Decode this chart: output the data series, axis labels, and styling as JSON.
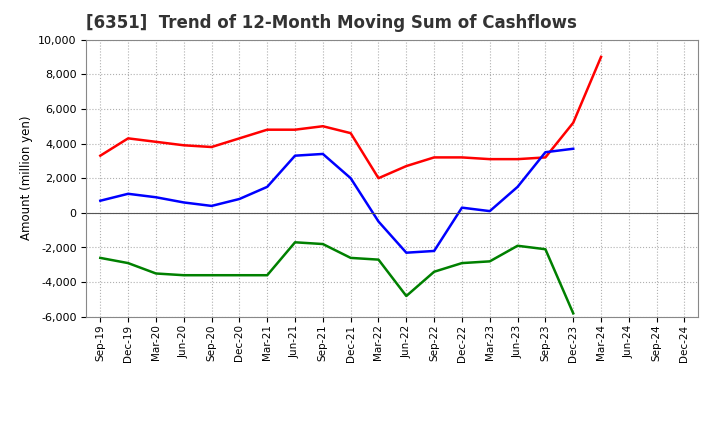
{
  "title": "[6351]  Trend of 12-Month Moving Sum of Cashflows",
  "ylabel": "Amount (million yen)",
  "x_labels": [
    "Sep-19",
    "Dec-19",
    "Mar-20",
    "Jun-20",
    "Sep-20",
    "Dec-20",
    "Mar-21",
    "Jun-21",
    "Sep-21",
    "Dec-21",
    "Mar-22",
    "Jun-22",
    "Sep-22",
    "Dec-22",
    "Mar-23",
    "Jun-23",
    "Sep-23",
    "Dec-23",
    "Mar-24",
    "Jun-24",
    "Sep-24",
    "Dec-24"
  ],
  "operating": [
    3300,
    4300,
    4100,
    3900,
    3800,
    4300,
    4800,
    4800,
    5000,
    4600,
    2000,
    2700,
    3200,
    3200,
    3100,
    3100,
    3200,
    5200,
    9000,
    null,
    null,
    null
  ],
  "investing": [
    -2600,
    -2900,
    -3500,
    -3600,
    -3600,
    -3600,
    -3600,
    -1700,
    -1800,
    -2600,
    -2700,
    -4800,
    -3400,
    -2900,
    -2800,
    -1900,
    -2100,
    -5800,
    null,
    null,
    null,
    null
  ],
  "free": [
    700,
    1100,
    900,
    600,
    400,
    800,
    1500,
    3300,
    3400,
    2000,
    -500,
    -2300,
    -2200,
    300,
    100,
    1500,
    3500,
    3700,
    null,
    null,
    null,
    null
  ],
  "ylim": [
    -6000,
    10000
  ],
  "yticks": [
    -6000,
    -4000,
    -2000,
    0,
    2000,
    4000,
    6000,
    8000,
    10000
  ],
  "operating_color": "#ff0000",
  "investing_color": "#008000",
  "free_color": "#0000ff",
  "bg_color": "#ffffff",
  "grid_color": "#b0b0b0",
  "title_fontsize": 12
}
